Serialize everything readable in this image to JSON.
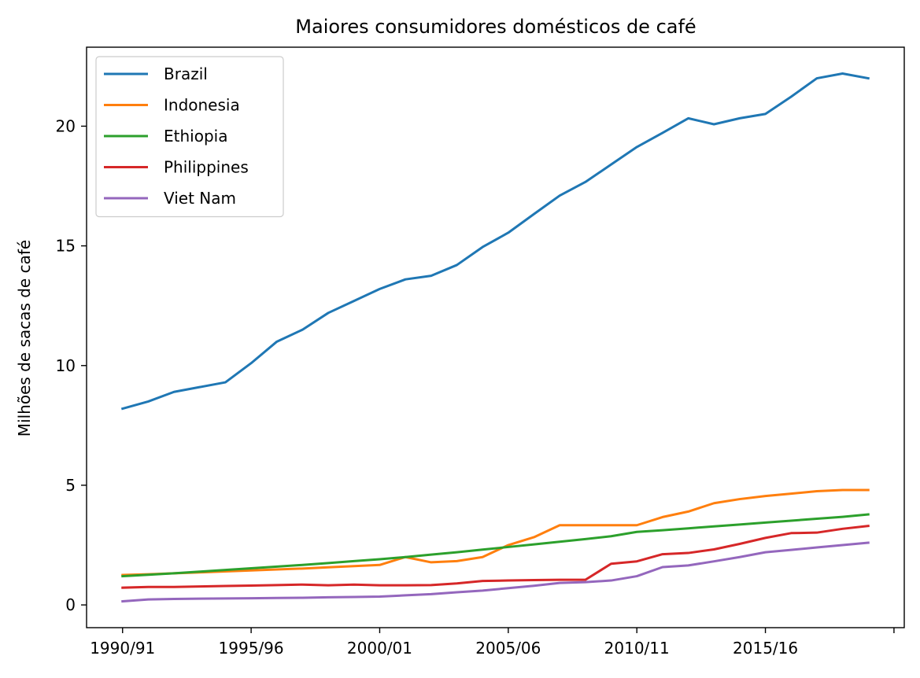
{
  "chart_data": {
    "type": "line",
    "title": "Maiores consumidores domésticos de café",
    "xlabel": "",
    "ylabel": "Milhões de sacas de café",
    "x": [
      0,
      1,
      2,
      3,
      4,
      5,
      6,
      7,
      8,
      9,
      10,
      11,
      12,
      13,
      14,
      15,
      16,
      17,
      18,
      19,
      20,
      21,
      22,
      23,
      24,
      25,
      26,
      27,
      28,
      29
    ],
    "xlim": [
      -1.4,
      30.4
    ],
    "ylim": [
      -0.95,
      23.3
    ],
    "xticks": [
      0,
      5,
      10,
      15,
      20,
      25,
      30
    ],
    "xtick_labels": [
      "1990/91",
      "1995/96",
      "2000/01",
      "2005/06",
      "2010/11",
      "2015/16",
      ""
    ],
    "yticks": [
      0,
      5,
      10,
      15,
      20
    ],
    "ytick_labels": [
      "0",
      "5",
      "10",
      "15",
      "20"
    ],
    "legend_position": "top-left",
    "grid": false,
    "series": [
      {
        "name": "Brazil",
        "color": "#1f77b4",
        "values": [
          8.2,
          8.5,
          8.9,
          9.1,
          9.3,
          10.1,
          11.0,
          11.5,
          12.2,
          12.7,
          13.2,
          13.6,
          13.75,
          14.2,
          14.95,
          15.55,
          16.33,
          17.1,
          17.67,
          18.4,
          19.13,
          19.72,
          20.33,
          20.08,
          20.33,
          20.51,
          21.23,
          22.0,
          22.2,
          22.0
        ]
      },
      {
        "name": "Indonesia",
        "color": "#ff7f0e",
        "values": [
          1.25,
          1.28,
          1.32,
          1.36,
          1.4,
          1.44,
          1.48,
          1.52,
          1.57,
          1.62,
          1.67,
          2.0,
          1.78,
          1.83,
          2.0,
          2.5,
          2.83,
          3.33,
          3.33,
          3.33,
          3.33,
          3.67,
          3.9,
          4.25,
          4.42,
          4.55,
          4.65,
          4.75,
          4.8,
          4.8
        ]
      },
      {
        "name": "Ethiopia",
        "color": "#2ca02c",
        "values": [
          1.2,
          1.26,
          1.32,
          1.39,
          1.46,
          1.53,
          1.6,
          1.67,
          1.75,
          1.83,
          1.91,
          2.0,
          2.1,
          2.2,
          2.31,
          2.42,
          2.53,
          2.64,
          2.75,
          2.87,
          3.05,
          3.12,
          3.2,
          3.28,
          3.36,
          3.44,
          3.52,
          3.6,
          3.68,
          3.78
        ]
      },
      {
        "name": "Philippines",
        "color": "#d62728",
        "values": [
          0.72,
          0.75,
          0.75,
          0.77,
          0.79,
          0.81,
          0.83,
          0.85,
          0.82,
          0.85,
          0.82,
          0.82,
          0.83,
          0.9,
          1.0,
          1.02,
          1.04,
          1.05,
          1.05,
          1.72,
          1.82,
          2.12,
          2.17,
          2.32,
          2.55,
          2.8,
          3.0,
          3.02,
          3.18,
          3.3
        ]
      },
      {
        "name": "Viet Nam",
        "color": "#9467bd",
        "values": [
          0.15,
          0.23,
          0.25,
          0.26,
          0.27,
          0.28,
          0.29,
          0.3,
          0.32,
          0.33,
          0.35,
          0.4,
          0.45,
          0.53,
          0.6,
          0.7,
          0.8,
          0.92,
          0.95,
          1.02,
          1.2,
          1.58,
          1.65,
          1.82,
          2.0,
          2.2,
          2.3,
          2.4,
          2.5,
          2.6
        ]
      }
    ]
  }
}
